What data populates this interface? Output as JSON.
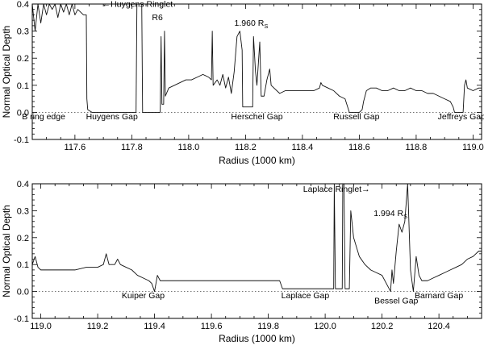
{
  "chart_data": [
    {
      "type": "line",
      "xlabel": "Radius (1000 km)",
      "ylabel": "Normal Optical Depth",
      "xlim": [
        117.45,
        119.03
      ],
      "ylim": [
        -0.1,
        0.4
      ],
      "xticks": [
        "117.6",
        "117.8",
        "118.0",
        "118.2",
        "118.4",
        "118.6",
        "118.8",
        "119.0"
      ],
      "yticks": [
        "-0.1",
        "0.0",
        "0.1",
        "0.2",
        "0.3",
        "0.4"
      ],
      "zero_line": "dotted",
      "series": [
        {
          "values": [
            [
              117.45,
              0.4
            ],
            [
              117.46,
              0.3
            ],
            [
              117.47,
              0.4
            ],
            [
              117.48,
              0.33
            ],
            [
              117.49,
              0.4
            ],
            [
              117.5,
              0.36
            ],
            [
              117.51,
              0.4
            ],
            [
              117.52,
              0.38
            ],
            [
              117.53,
              0.4
            ],
            [
              117.54,
              0.35
            ],
            [
              117.55,
              0.4
            ],
            [
              117.56,
              0.37
            ],
            [
              117.57,
              0.4
            ],
            [
              117.58,
              0.36
            ],
            [
              117.59,
              0.4
            ],
            [
              117.6,
              0.36
            ],
            [
              117.61,
              0.38
            ],
            [
              117.62,
              0.37
            ],
            [
              117.63,
              0.36
            ],
            [
              117.64,
              0.36
            ],
            [
              117.642,
              0.05
            ],
            [
              117.645,
              0.01
            ],
            [
              117.66,
              0.0
            ],
            [
              117.7,
              0.0
            ],
            [
              117.75,
              0.0
            ],
            [
              117.8,
              0.0
            ],
            [
              117.815,
              0.0
            ],
            [
              117.818,
              0.4
            ],
            [
              117.835,
              0.4
            ],
            [
              117.838,
              0.0
            ],
            [
              117.86,
              0.0
            ],
            [
              117.89,
              0.0
            ],
            [
              117.9,
              0.0
            ],
            [
              117.903,
              0.28
            ],
            [
              117.906,
              0.03
            ],
            [
              117.912,
              0.03
            ],
            [
              117.915,
              0.3
            ],
            [
              117.918,
              0.06
            ],
            [
              117.93,
              0.09
            ],
            [
              117.95,
              0.1
            ],
            [
              117.97,
              0.11
            ],
            [
              117.99,
              0.12
            ],
            [
              118.01,
              0.12
            ],
            [
              118.03,
              0.13
            ],
            [
              118.05,
              0.14
            ],
            [
              118.07,
              0.13
            ],
            [
              118.08,
              0.12
            ],
            [
              118.083,
              0.3
            ],
            [
              118.086,
              0.1
            ],
            [
              118.1,
              0.12
            ],
            [
              118.11,
              0.1
            ],
            [
              118.12,
              0.14
            ],
            [
              118.13,
              0.09
            ],
            [
              118.14,
              0.13
            ],
            [
              118.15,
              0.07
            ],
            [
              118.16,
              0.15
            ],
            [
              118.17,
              0.28
            ],
            [
              118.18,
              0.3
            ],
            [
              118.188,
              0.23
            ],
            [
              118.19,
              0.02
            ],
            [
              118.2,
              0.02
            ],
            [
              118.21,
              0.02
            ],
            [
              118.225,
              0.02
            ],
            [
              118.228,
              0.28
            ],
            [
              118.235,
              0.15
            ],
            [
              118.24,
              0.1
            ],
            [
              118.25,
              0.26
            ],
            [
              118.255,
              0.06
            ],
            [
              118.265,
              0.06
            ],
            [
              118.275,
              0.12
            ],
            [
              118.285,
              0.16
            ],
            [
              118.29,
              0.1
            ],
            [
              118.3,
              0.09
            ],
            [
              118.32,
              0.07
            ],
            [
              118.34,
              0.08
            ],
            [
              118.36,
              0.08
            ],
            [
              118.38,
              0.08
            ],
            [
              118.4,
              0.08
            ],
            [
              118.42,
              0.08
            ],
            [
              118.44,
              0.08
            ],
            [
              118.46,
              0.09
            ],
            [
              118.465,
              0.11
            ],
            [
              118.47,
              0.1
            ],
            [
              118.49,
              0.09
            ],
            [
              118.51,
              0.08
            ],
            [
              118.53,
              0.06
            ],
            [
              118.55,
              0.05
            ],
            [
              118.565,
              0.0
            ],
            [
              118.58,
              0.0
            ],
            [
              118.6,
              0.0
            ],
            [
              118.61,
              0.01
            ],
            [
              118.615,
              0.04
            ],
            [
              118.625,
              0.08
            ],
            [
              118.64,
              0.09
            ],
            [
              118.66,
              0.09
            ],
            [
              118.68,
              0.08
            ],
            [
              118.7,
              0.08
            ],
            [
              118.72,
              0.09
            ],
            [
              118.74,
              0.08
            ],
            [
              118.76,
              0.08
            ],
            [
              118.78,
              0.09
            ],
            [
              118.8,
              0.08
            ],
            [
              118.82,
              0.08
            ],
            [
              118.84,
              0.07
            ],
            [
              118.86,
              0.07
            ],
            [
              118.88,
              0.06
            ],
            [
              118.9,
              0.05
            ],
            [
              118.92,
              0.04
            ],
            [
              118.93,
              0.02
            ],
            [
              118.935,
              0.0
            ],
            [
              118.95,
              0.0
            ],
            [
              118.965,
              0.0
            ],
            [
              118.97,
              0.1
            ],
            [
              118.975,
              0.12
            ],
            [
              118.98,
              0.09
            ],
            [
              119.0,
              0.08
            ],
            [
              119.02,
              0.09
            ],
            [
              119.03,
              0.09
            ]
          ]
        }
      ],
      "annotations": [
        {
          "text": "B ring edge",
          "x": 117.49,
          "y": -0.025
        },
        {
          "text": "Huygens Gap",
          "x": 117.73,
          "y": -0.025
        },
        {
          "text": "←Huygens Ringlet",
          "x": 117.82,
          "y": 0.39
        },
        {
          "text": "R6",
          "x": 117.89,
          "y": 0.34
        },
        {
          "text": "1.960 R",
          "sub": "S",
          "x": 118.22,
          "y": 0.32
        },
        {
          "text": "Herschel Gap",
          "x": 118.24,
          "y": -0.025
        },
        {
          "text": "Russell Gap",
          "x": 118.59,
          "y": -0.025
        },
        {
          "text": "Jeffreys Gap",
          "x": 118.96,
          "y": -0.025
        }
      ]
    },
    {
      "type": "line",
      "xlabel": "Radius (1000 km)",
      "ylabel": "Normal Optical Depth",
      "xlim": [
        118.97,
        120.55
      ],
      "ylim": [
        -0.1,
        0.4
      ],
      "xticks": [
        "119.0",
        "119.2",
        "119.4",
        "119.6",
        "119.8",
        "120.0",
        "120.2",
        "120.4"
      ],
      "yticks": [
        "-0.1",
        "0.0",
        "0.1",
        "0.2",
        "0.3",
        "0.4"
      ],
      "zero_line": "dotted",
      "series": [
        {
          "values": [
            [
              118.97,
              0.1
            ],
            [
              118.98,
              0.13
            ],
            [
              118.99,
              0.09
            ],
            [
              119.0,
              0.08
            ],
            [
              119.04,
              0.08
            ],
            [
              119.08,
              0.08
            ],
            [
              119.12,
              0.08
            ],
            [
              119.16,
              0.09
            ],
            [
              119.2,
              0.09
            ],
            [
              119.22,
              0.1
            ],
            [
              119.23,
              0.14
            ],
            [
              119.24,
              0.1
            ],
            [
              119.26,
              0.1
            ],
            [
              119.27,
              0.12
            ],
            [
              119.28,
              0.1
            ],
            [
              119.3,
              0.09
            ],
            [
              119.32,
              0.08
            ],
            [
              119.34,
              0.06
            ],
            [
              119.36,
              0.05
            ],
            [
              119.38,
              0.04
            ],
            [
              119.39,
              0.03
            ],
            [
              119.4,
              0.0
            ],
            [
              119.41,
              0.06
            ],
            [
              119.42,
              0.04
            ],
            [
              119.46,
              0.04
            ],
            [
              119.5,
              0.04
            ],
            [
              119.55,
              0.04
            ],
            [
              119.6,
              0.04
            ],
            [
              119.65,
              0.04
            ],
            [
              119.7,
              0.04
            ],
            [
              119.75,
              0.04
            ],
            [
              119.8,
              0.04
            ],
            [
              119.84,
              0.04
            ],
            [
              119.85,
              0.01
            ],
            [
              119.9,
              0.01
            ],
            [
              119.95,
              0.01
            ],
            [
              120.0,
              0.01
            ],
            [
              120.03,
              0.01
            ],
            [
              120.032,
              0.4
            ],
            [
              120.036,
              0.01
            ],
            [
              120.06,
              0.01
            ],
            [
              120.062,
              0.4
            ],
            [
              120.066,
              0.4
            ],
            [
              120.07,
              0.01
            ],
            [
              120.085,
              0.01
            ],
            [
              120.09,
              0.3
            ],
            [
              120.1,
              0.2
            ],
            [
              120.12,
              0.13
            ],
            [
              120.14,
              0.1
            ],
            [
              120.16,
              0.08
            ],
            [
              120.18,
              0.07
            ],
            [
              120.2,
              0.06
            ],
            [
              120.22,
              0.02
            ],
            [
              120.23,
              0.0
            ],
            [
              120.235,
              0.08
            ],
            [
              120.24,
              0.03
            ],
            [
              120.25,
              0.15
            ],
            [
              120.26,
              0.25
            ],
            [
              120.27,
              0.22
            ],
            [
              120.28,
              0.26
            ],
            [
              120.29,
              0.4
            ],
            [
              120.3,
              0.08
            ],
            [
              120.31,
              0.0
            ],
            [
              120.32,
              0.13
            ],
            [
              120.33,
              0.06
            ],
            [
              120.34,
              0.04
            ],
            [
              120.36,
              0.04
            ],
            [
              120.38,
              0.05
            ],
            [
              120.4,
              0.06
            ],
            [
              120.42,
              0.07
            ],
            [
              120.44,
              0.08
            ],
            [
              120.46,
              0.09
            ],
            [
              120.48,
              0.1
            ],
            [
              120.5,
              0.12
            ],
            [
              120.52,
              0.13
            ],
            [
              120.54,
              0.15
            ],
            [
              120.55,
              0.15
            ]
          ]
        }
      ],
      "annotations": [
        {
          "text": "Laplace Ringlet→",
          "x": 120.04,
          "y": 0.37
        },
        {
          "text": "1.994 R",
          "sub": "S",
          "x": 120.23,
          "y": 0.28
        },
        {
          "text": "Kuiper Gap",
          "x": 119.36,
          "y": -0.025
        },
        {
          "text": "Laplace Gap",
          "x": 119.93,
          "y": -0.025
        },
        {
          "text": "Bessel Gap",
          "x": 120.25,
          "y": -0.045
        },
        {
          "text": "Barnard Gap",
          "x": 120.4,
          "y": -0.025
        }
      ]
    }
  ]
}
